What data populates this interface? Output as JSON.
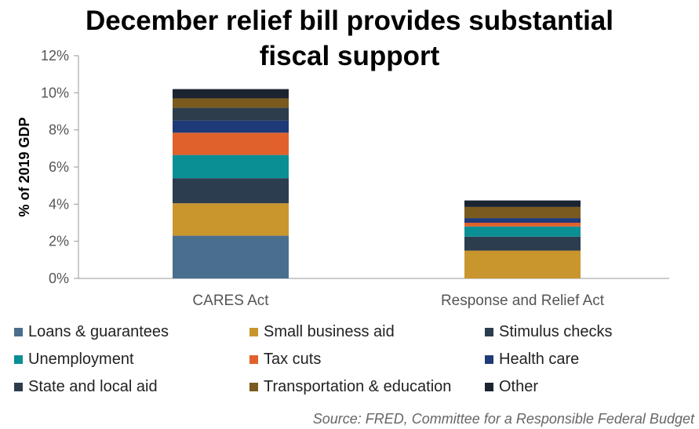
{
  "title_lines": [
    "December relief bill provides substantial",
    "fiscal support"
  ],
  "source": "Source: FRED, Committee for a Responsible Federal Budget",
  "colors": {
    "Loans & guarantees": "#4a6e8e",
    "Small business aid": "#c9962e",
    "Stimulus checks": "#2b3d4f",
    "Unemployment": "#0a8f94",
    "Tax cuts": "#e0612b",
    "Health care": "#1f3a78",
    "State and local aid": "#2e3d4b",
    "Transportation & education": "#7a5a1e",
    "Other": "#1b2430"
  },
  "chart_data": {
    "type": "bar",
    "stacked": true,
    "title": "December relief bill provides substantial fiscal support",
    "ylabel": "% of 2019 GDP",
    "xlabel": "",
    "ylim": [
      0,
      12
    ],
    "yticks": [
      "0%",
      "2%",
      "4%",
      "6%",
      "8%",
      "10%",
      "12%"
    ],
    "categories": [
      "CARES Act",
      "Response and Relief Act"
    ],
    "series": [
      {
        "name": "Loans & guarantees",
        "values": [
          2.3,
          0.0
        ]
      },
      {
        "name": "Small business aid",
        "values": [
          1.75,
          1.5
        ]
      },
      {
        "name": "Stimulus checks",
        "values": [
          1.35,
          0.75
        ]
      },
      {
        "name": "Unemployment",
        "values": [
          1.25,
          0.55
        ]
      },
      {
        "name": "Tax cuts",
        "values": [
          1.2,
          0.2
        ]
      },
      {
        "name": "Health care",
        "values": [
          0.65,
          0.25
        ]
      },
      {
        "name": "State and local aid",
        "values": [
          0.7,
          0.0
        ]
      },
      {
        "name": "Transportation & education",
        "values": [
          0.5,
          0.6
        ]
      },
      {
        "name": "Other",
        "values": [
          0.5,
          0.35
        ]
      }
    ],
    "legend_position": "bottom",
    "grid": false
  }
}
